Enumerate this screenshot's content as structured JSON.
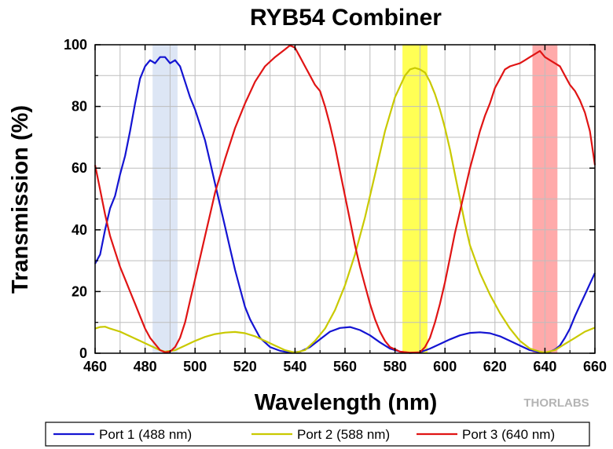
{
  "chart_data": {
    "type": "line",
    "title": "RYB54 Combiner",
    "xlabel": "Wavelength (nm)",
    "ylabel": "Transmission (%)",
    "xlim": [
      460,
      660
    ],
    "ylim": [
      0,
      100
    ],
    "x_ticks": [
      460,
      480,
      500,
      520,
      540,
      560,
      580,
      600,
      620,
      640,
      660
    ],
    "y_ticks": [
      0,
      20,
      40,
      60,
      80,
      100
    ],
    "grid": true,
    "legend_position": "bottom",
    "highlight_bands": [
      {
        "x_range": [
          483,
          493
        ],
        "color": "#dde6f5"
      },
      {
        "x_range": [
          583,
          593
        ],
        "color": "#ffff55"
      },
      {
        "x_range": [
          635,
          645
        ],
        "color": "#ffaaaa"
      }
    ],
    "series": [
      {
        "name": "Port 1 (488 nm)",
        "color": "#1414d2",
        "points": [
          [
            460,
            29
          ],
          [
            462,
            32
          ],
          [
            464,
            40
          ],
          [
            466,
            47
          ],
          [
            468,
            51
          ],
          [
            470,
            58
          ],
          [
            472,
            64
          ],
          [
            474,
            72
          ],
          [
            476,
            81
          ],
          [
            478,
            89
          ],
          [
            480,
            93
          ],
          [
            482,
            95
          ],
          [
            484,
            94
          ],
          [
            486,
            96
          ],
          [
            488,
            96
          ],
          [
            490,
            94
          ],
          [
            492,
            95
          ],
          [
            494,
            93
          ],
          [
            496,
            88
          ],
          [
            498,
            83
          ],
          [
            500,
            79
          ],
          [
            502,
            74
          ],
          [
            504,
            69
          ],
          [
            506,
            62
          ],
          [
            508,
            55
          ],
          [
            510,
            48
          ],
          [
            512,
            41
          ],
          [
            514,
            34
          ],
          [
            516,
            27
          ],
          [
            518,
            21
          ],
          [
            520,
            15
          ],
          [
            522,
            11
          ],
          [
            524,
            8
          ],
          [
            526,
            5
          ],
          [
            528,
            3.5
          ],
          [
            530,
            2
          ],
          [
            534,
            0.8
          ],
          [
            538,
            0.2
          ],
          [
            542,
            0.5
          ],
          [
            546,
            2
          ],
          [
            550,
            4.5
          ],
          [
            554,
            7
          ],
          [
            558,
            8.2
          ],
          [
            562,
            8.5
          ],
          [
            566,
            7.5
          ],
          [
            570,
            5.8
          ],
          [
            574,
            3.5
          ],
          [
            578,
            1.5
          ],
          [
            582,
            0.5
          ],
          [
            586,
            0.1
          ],
          [
            590,
            0.3
          ],
          [
            594,
            1.5
          ],
          [
            598,
            3
          ],
          [
            602,
            4.5
          ],
          [
            606,
            5.8
          ],
          [
            610,
            6.6
          ],
          [
            614,
            6.8
          ],
          [
            618,
            6.5
          ],
          [
            622,
            5.5
          ],
          [
            626,
            4
          ],
          [
            630,
            2.5
          ],
          [
            634,
            1
          ],
          [
            638,
            0.3
          ],
          [
            640,
            0.2
          ],
          [
            642,
            0.5
          ],
          [
            644,
            1.2
          ],
          [
            646,
            2.5
          ],
          [
            648,
            5
          ],
          [
            650,
            8
          ],
          [
            652,
            12
          ],
          [
            654,
            15.5
          ],
          [
            656,
            19
          ],
          [
            658,
            22.5
          ],
          [
            660,
            26
          ]
        ]
      },
      {
        "name": "Port 2 (588 nm)",
        "color": "#c9c900",
        "points": [
          [
            460,
            8
          ],
          [
            462,
            8.5
          ],
          [
            464,
            8.6
          ],
          [
            466,
            8
          ],
          [
            470,
            7
          ],
          [
            474,
            5.5
          ],
          [
            478,
            4
          ],
          [
            482,
            2.5
          ],
          [
            486,
            1
          ],
          [
            488,
            0.5
          ],
          [
            492,
            1
          ],
          [
            496,
            2.5
          ],
          [
            500,
            4
          ],
          [
            504,
            5.3
          ],
          [
            508,
            6.2
          ],
          [
            512,
            6.7
          ],
          [
            516,
            6.9
          ],
          [
            520,
            6.5
          ],
          [
            524,
            5.5
          ],
          [
            528,
            4
          ],
          [
            532,
            2.5
          ],
          [
            536,
            1
          ],
          [
            540,
            0.2
          ],
          [
            544,
            1
          ],
          [
            548,
            4
          ],
          [
            552,
            8
          ],
          [
            556,
            14
          ],
          [
            560,
            22
          ],
          [
            564,
            32
          ],
          [
            568,
            44
          ],
          [
            572,
            58
          ],
          [
            576,
            72
          ],
          [
            580,
            83
          ],
          [
            584,
            90
          ],
          [
            586,
            92
          ],
          [
            588,
            92.5
          ],
          [
            590,
            92
          ],
          [
            592,
            91
          ],
          [
            594,
            88
          ],
          [
            596,
            84
          ],
          [
            598,
            79
          ],
          [
            600,
            73
          ],
          [
            602,
            66
          ],
          [
            604,
            58
          ],
          [
            606,
            50
          ],
          [
            608,
            42
          ],
          [
            610,
            35
          ],
          [
            614,
            26
          ],
          [
            618,
            19
          ],
          [
            622,
            13
          ],
          [
            626,
            8
          ],
          [
            630,
            4
          ],
          [
            634,
            1.5
          ],
          [
            638,
            0.5
          ],
          [
            640,
            0.2
          ],
          [
            644,
            1
          ],
          [
            648,
            3
          ],
          [
            652,
            5
          ],
          [
            656,
            7
          ],
          [
            660,
            8.3
          ]
        ]
      },
      {
        "name": "Port 3 (640 nm)",
        "color": "#e01414",
        "points": [
          [
            460,
            61
          ],
          [
            462,
            53
          ],
          [
            464,
            45
          ],
          [
            466,
            38
          ],
          [
            468,
            33
          ],
          [
            470,
            28
          ],
          [
            472,
            24
          ],
          [
            474,
            20
          ],
          [
            476,
            16
          ],
          [
            478,
            12
          ],
          [
            480,
            8
          ],
          [
            482,
            5
          ],
          [
            484,
            3
          ],
          [
            486,
            1
          ],
          [
            488,
            0.3
          ],
          [
            490,
            0.5
          ],
          [
            492,
            2
          ],
          [
            494,
            5
          ],
          [
            496,
            10
          ],
          [
            498,
            17
          ],
          [
            500,
            24
          ],
          [
            502,
            31
          ],
          [
            504,
            38
          ],
          [
            506,
            45
          ],
          [
            508,
            52
          ],
          [
            512,
            63
          ],
          [
            516,
            73
          ],
          [
            520,
            81
          ],
          [
            524,
            88
          ],
          [
            528,
            93
          ],
          [
            532,
            96
          ],
          [
            536,
            98.5
          ],
          [
            538,
            99.8
          ],
          [
            540,
            99
          ],
          [
            542,
            96
          ],
          [
            544,
            93
          ],
          [
            546,
            90
          ],
          [
            548,
            87
          ],
          [
            550,
            85
          ],
          [
            552,
            80
          ],
          [
            554,
            74
          ],
          [
            556,
            67
          ],
          [
            558,
            59
          ],
          [
            560,
            51
          ],
          [
            562,
            43
          ],
          [
            564,
            35
          ],
          [
            566,
            28
          ],
          [
            568,
            22
          ],
          [
            570,
            16
          ],
          [
            572,
            11
          ],
          [
            574,
            7
          ],
          [
            576,
            4
          ],
          [
            578,
            2
          ],
          [
            582,
            0.5
          ],
          [
            586,
            0.2
          ],
          [
            590,
            0.3
          ],
          [
            592,
            2
          ],
          [
            594,
            5
          ],
          [
            596,
            10
          ],
          [
            598,
            16
          ],
          [
            600,
            23
          ],
          [
            602,
            31
          ],
          [
            604,
            39
          ],
          [
            606,
            46
          ],
          [
            608,
            53
          ],
          [
            610,
            60
          ],
          [
            612,
            66
          ],
          [
            614,
            72
          ],
          [
            616,
            77
          ],
          [
            618,
            81
          ],
          [
            620,
            86
          ],
          [
            622,
            89
          ],
          [
            624,
            92
          ],
          [
            626,
            93
          ],
          [
            628,
            93.5
          ],
          [
            630,
            94
          ],
          [
            632,
            95
          ],
          [
            634,
            96
          ],
          [
            636,
            97
          ],
          [
            638,
            98
          ],
          [
            640,
            96
          ],
          [
            642,
            95
          ],
          [
            644,
            94
          ],
          [
            646,
            93
          ],
          [
            648,
            90
          ],
          [
            650,
            87
          ],
          [
            652,
            85
          ],
          [
            654,
            82
          ],
          [
            656,
            78
          ],
          [
            658,
            72
          ],
          [
            660,
            61
          ]
        ]
      }
    ]
  },
  "watermark": "THORLABS"
}
